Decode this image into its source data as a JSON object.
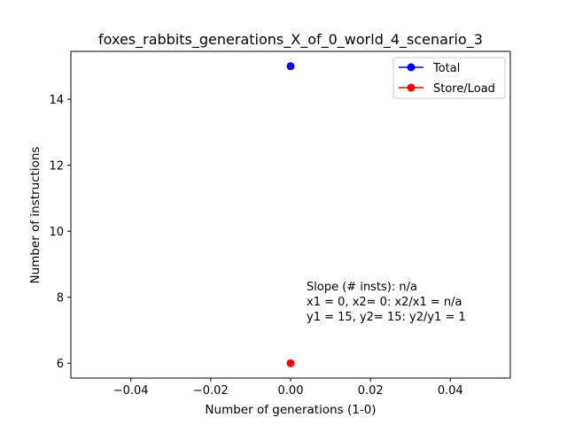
{
  "chart_data": {
    "type": "scatter",
    "title": "foxes_rabbits_generations_X_of_0_world_4_scenario_3",
    "xlabel": "Number of generations (1-0)",
    "ylabel": "Number of instructions",
    "xlim": [
      -0.055,
      0.055
    ],
    "ylim": [
      5.55,
      15.45
    ],
    "xticks": [
      -0.04,
      -0.02,
      0.0,
      0.02,
      0.04
    ],
    "xtick_labels": [
      "−0.04",
      "−0.02",
      "0.00",
      "0.02",
      "0.04"
    ],
    "yticks": [
      6,
      8,
      10,
      12,
      14
    ],
    "ytick_labels": [
      "6",
      "8",
      "10",
      "12",
      "14"
    ],
    "grid": false,
    "legend_position": "top-right",
    "series": [
      {
        "name": "Total",
        "color": "#0000ff",
        "points": [
          {
            "x": 0,
            "y": 15
          }
        ]
      },
      {
        "name": "Store/Load",
        "color": "#ff0000",
        "points": [
          {
            "x": 0,
            "y": 6
          }
        ]
      }
    ],
    "annotation": {
      "x": 0.004,
      "y": 7.3,
      "lines": [
        "Slope (# insts): n/a",
        "x1 = 0, x2= 0: x2/x1 = n/a",
        "y1 = 15, y2= 15: y2/y1 = 1"
      ]
    }
  }
}
